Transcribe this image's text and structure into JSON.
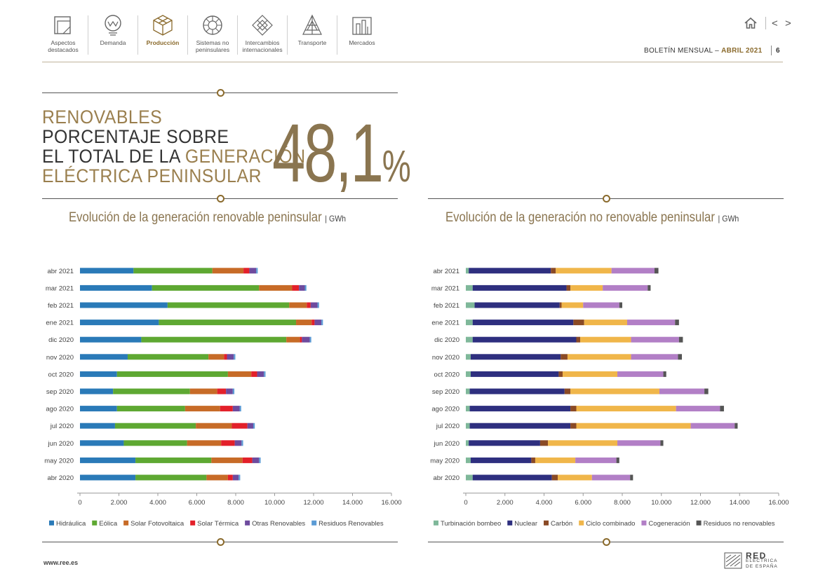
{
  "nav": {
    "items": [
      {
        "label1": "Aspectos",
        "label2": "destacados",
        "icon": "document-icon",
        "active": false
      },
      {
        "label1": "Demanda",
        "label2": "",
        "icon": "bulb-icon",
        "active": false
      },
      {
        "label1": "Producción",
        "label2": "",
        "icon": "cube-icon",
        "active": true
      },
      {
        "label1": "Sistemas no",
        "label2": "peninsulares",
        "icon": "wheel-icon",
        "active": false
      },
      {
        "label1": "Intercambios",
        "label2": "internacionales",
        "icon": "diamond-icon",
        "active": false
      },
      {
        "label1": "Transporte",
        "label2": "",
        "icon": "tower-icon",
        "active": false
      },
      {
        "label1": "Mercados",
        "label2": "",
        "icon": "market-icon",
        "active": false
      }
    ],
    "prev_symbol": "<",
    "next_symbol": ">"
  },
  "header": {
    "bulletin": "BOLETÍN MENSUAL  –",
    "month": "ABRIL 2021",
    "page": "6"
  },
  "headline": {
    "line1": "RENOVABLES",
    "line2": "PORCENTAJE SOBRE",
    "line3a": "EL TOTAL DE LA ",
    "line3b": "GENERACIÓN",
    "line4": "ELÉCTRICA PENINSULAR",
    "value": "48,1",
    "unit": "%"
  },
  "footer": {
    "url": "www.ree.es",
    "logo_line1": "RED",
    "logo_line2": "ELÉCTRICA",
    "logo_line3": "DE ESPAÑA"
  },
  "chart_data": [
    {
      "type": "bar",
      "orientation": "horizontal",
      "stacked": true,
      "title": "Evolución de la generación renovable peninsular",
      "unit": "GWh",
      "categories": [
        "abr 2021",
        "mar 2021",
        "feb 2021",
        "ene 2021",
        "dic 2020",
        "nov 2020",
        "oct 2020",
        "sep 2020",
        "ago 2020",
        "jul 2020",
        "jun 2020",
        "may 2020",
        "abr 2020"
      ],
      "xlim": [
        0,
        16000
      ],
      "xticks": [
        0,
        2000,
        4000,
        6000,
        8000,
        10000,
        12000,
        14000,
        16000
      ],
      "xtick_labels": [
        "0",
        "2.000",
        "4.000",
        "6.000",
        "8.000",
        "10.000",
        "12.000",
        "14.000",
        "16.000"
      ],
      "series": [
        {
          "name": "Hidráulica",
          "color": "#2a7ab8",
          "values": [
            2750,
            3700,
            4500,
            4050,
            3150,
            2450,
            1900,
            1700,
            1900,
            1800,
            2250,
            2850,
            2850
          ]
        },
        {
          "name": "Eólica",
          "color": "#5ea832",
          "values": [
            4050,
            5500,
            6250,
            7050,
            7450,
            4150,
            5700,
            3950,
            3500,
            4150,
            3250,
            3900,
            3650
          ]
        },
        {
          "name": "Solar Fotovoltaica",
          "color": "#c76b27",
          "values": [
            1600,
            1700,
            900,
            800,
            700,
            800,
            1200,
            1400,
            1800,
            1850,
            1750,
            1600,
            1100
          ]
        },
        {
          "name": "Solar Térmica",
          "color": "#e3202a",
          "values": [
            300,
            350,
            200,
            150,
            100,
            150,
            300,
            450,
            650,
            800,
            700,
            500,
            250
          ]
        },
        {
          "name": "Otras Renovables",
          "color": "#6e4b9e",
          "values": [
            350,
            300,
            350,
            350,
            400,
            350,
            350,
            350,
            350,
            300,
            350,
            350,
            300
          ]
        },
        {
          "name": "Residuos Renovables",
          "color": "#5b9bd5",
          "values": [
            80,
            80,
            80,
            80,
            80,
            80,
            80,
            80,
            80,
            80,
            80,
            80,
            80
          ]
        }
      ]
    },
    {
      "type": "bar",
      "orientation": "horizontal",
      "stacked": true,
      "title": "Evolución de la generación no renovable peninsular",
      "unit": "GWh",
      "categories": [
        "abr 2021",
        "mar 2021",
        "feb 2021",
        "ene 2021",
        "dic 2020",
        "nov 2020",
        "oct 2020",
        "sep 2020",
        "ago 2020",
        "jul 2020",
        "jun 2020",
        "may 2020",
        "abr 2020"
      ],
      "xlim": [
        0,
        16000
      ],
      "xticks": [
        0,
        2000,
        4000,
        6000,
        8000,
        10000,
        12000,
        14000,
        16000
      ],
      "xtick_labels": [
        "0",
        "2.000",
        "4.000",
        "6.000",
        "8.000",
        "10.000",
        "12.000",
        "14.000",
        "16.000"
      ],
      "series": [
        {
          "name": "Turbinación bombeo",
          "color": "#7fb89a",
          "values": [
            150,
            350,
            450,
            350,
            350,
            250,
            250,
            200,
            200,
            200,
            150,
            250,
            350
          ]
        },
        {
          "name": "Nuclear",
          "color": "#2e2f7f",
          "values": [
            4200,
            4800,
            4350,
            5150,
            5300,
            4600,
            4500,
            4850,
            5150,
            5150,
            3650,
            3100,
            4050
          ]
        },
        {
          "name": "Carbón",
          "color": "#8a4a25",
          "values": [
            250,
            200,
            100,
            550,
            200,
            350,
            200,
            300,
            300,
            300,
            400,
            200,
            300
          ]
        },
        {
          "name": "Ciclo combinado",
          "color": "#f0b64a",
          "values": [
            2850,
            1650,
            1100,
            2200,
            2600,
            3250,
            2800,
            4550,
            5100,
            5850,
            3550,
            2050,
            1750
          ]
        },
        {
          "name": "Cogeneración",
          "color": "#b27fc6",
          "values": [
            2200,
            2300,
            1850,
            2450,
            2450,
            2400,
            2350,
            2300,
            2250,
            2250,
            2200,
            2100,
            1950
          ]
        },
        {
          "name": "Residuos no renovables",
          "color": "#555555",
          "values": [
            200,
            150,
            150,
            200,
            200,
            200,
            150,
            200,
            200,
            150,
            150,
            150,
            150
          ]
        }
      ]
    }
  ]
}
